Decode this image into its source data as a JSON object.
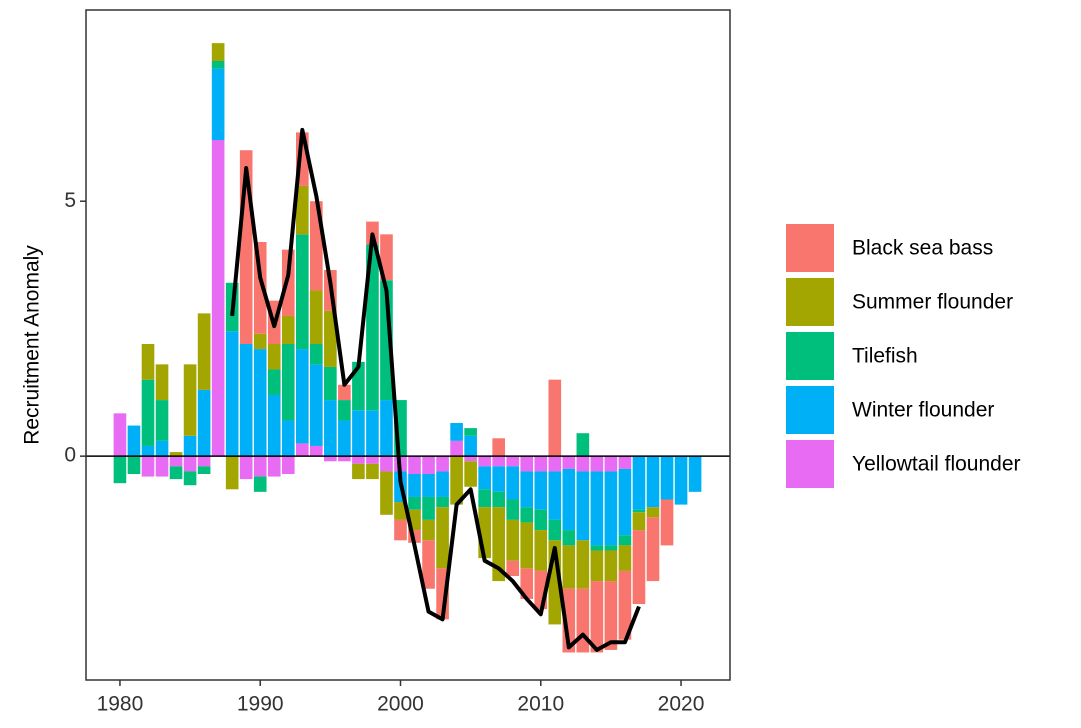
{
  "chart_data": {
    "type": "bar",
    "stacked": true,
    "y_label": "Recruitment Anomaly",
    "x": [
      1980,
      1981,
      1982,
      1983,
      1984,
      1985,
      1986,
      1987,
      1988,
      1989,
      1990,
      1991,
      1992,
      1993,
      1994,
      1995,
      1996,
      1997,
      1998,
      1999,
      2000,
      2001,
      2002,
      2003,
      2004,
      2005,
      2006,
      2007,
      2008,
      2009,
      2010,
      2011,
      2012,
      2013,
      2014,
      2015,
      2016,
      2017,
      2018,
      2019,
      2020,
      2021
    ],
    "xlim": [
      1977.58,
      2023.49
    ],
    "xticks": [
      1980,
      1990,
      2000,
      2010,
      2020
    ],
    "ylim": [
      -4.39,
      8.75
    ],
    "yticks": [
      0,
      5
    ],
    "grid": false,
    "legend": "right",
    "series": [
      {
        "name": "Black sea bass",
        "color": "#F8766D",
        "values": [
          null,
          null,
          null,
          null,
          null,
          null,
          null,
          null,
          null,
          3.8,
          1.8,
          0.85,
          1.3,
          1.05,
          1.75,
          0.8,
          0.3,
          null,
          0.45,
          0.9,
          -0.4,
          -0.25,
          -0.95,
          -1.0,
          null,
          null,
          null,
          0.35,
          -0.3,
          -0.6,
          -0.75,
          1.5,
          -1.25,
          -1.25,
          -1.4,
          -1.35,
          -1.35,
          -1.45,
          -1.25,
          -0.9,
          null,
          null
        ]
      },
      {
        "name": "Summer flounder",
        "color": "#A3A500",
        "values": [
          null,
          null,
          0.7,
          0.7,
          0.08,
          1.4,
          1.5,
          0.35,
          -0.65,
          null,
          0.3,
          0.5,
          0.55,
          0.95,
          1.05,
          1.1,
          null,
          -0.3,
          -0.3,
          -0.85,
          -0.35,
          -0.4,
          -0.4,
          -1.2,
          -0.95,
          -0.5,
          -1.0,
          -1.45,
          -0.8,
          -0.9,
          -0.8,
          -1.65,
          -0.85,
          -0.95,
          -0.6,
          -0.6,
          -0.5,
          -0.35,
          -0.2,
          null,
          null,
          null
        ]
      },
      {
        "name": "Tilefish",
        "color": "#00BF7D",
        "values": [
          -0.53,
          -0.35,
          1.3,
          0.8,
          -0.25,
          -0.27,
          -0.15,
          0.15,
          0.95,
          null,
          -0.3,
          0.5,
          1.5,
          2.25,
          0.4,
          0.65,
          0.4,
          0.95,
          3.25,
          2.35,
          1.1,
          -0.25,
          -0.45,
          -0.2,
          null,
          0.15,
          -0.35,
          -0.3,
          -0.4,
          -0.3,
          -0.4,
          -0.4,
          -0.3,
          0.45,
          -0.1,
          -0.1,
          -0.2,
          -0.05,
          null,
          null,
          null,
          null
        ]
      },
      {
        "name": "Winter flounder",
        "color": "#00B0F6",
        "values": [
          null,
          0.6,
          0.2,
          0.3,
          null,
          0.4,
          1.3,
          1.4,
          2.45,
          2.2,
          2.1,
          1.2,
          0.7,
          1.85,
          1.6,
          1.1,
          0.7,
          0.9,
          0.9,
          1.1,
          -0.6,
          -0.45,
          -0.45,
          -0.5,
          0.35,
          0.4,
          -0.45,
          -0.5,
          -0.65,
          -0.7,
          -0.75,
          -0.95,
          -1.2,
          -1.35,
          -1.45,
          -1.45,
          -1.3,
          -1.05,
          -1.0,
          -0.85,
          -0.95,
          -0.7
        ]
      },
      {
        "name": "Yellowtail flounder",
        "color": "#E76BF3",
        "values": [
          0.84,
          null,
          -0.4,
          -0.4,
          -0.2,
          -0.3,
          -0.2,
          6.2,
          null,
          -0.45,
          -0.4,
          -0.4,
          -0.35,
          0.25,
          0.2,
          -0.1,
          -0.1,
          -0.15,
          -0.15,
          -0.3,
          -0.3,
          -0.35,
          -0.35,
          -0.3,
          0.3,
          -0.1,
          -0.2,
          -0.2,
          -0.2,
          -0.3,
          -0.3,
          -0.3,
          -0.25,
          -0.3,
          -0.3,
          -0.3,
          -0.25,
          null,
          null,
          null,
          null,
          null
        ]
      }
    ],
    "line": {
      "color": "#000000",
      "x": [
        1988,
        1989,
        1990,
        1991,
        1992,
        1993,
        1994,
        1995,
        1996,
        1997,
        1998,
        1999,
        2000,
        2001,
        2002,
        2003,
        2004,
        2005,
        2006,
        2007,
        2008,
        2009,
        2010,
        2011,
        2012,
        2013,
        2014,
        2015,
        2016,
        2017
      ],
      "values": [
        2.75,
        5.65,
        3.5,
        2.55,
        3.55,
        6.4,
        5.1,
        3.4,
        1.4,
        1.75,
        4.35,
        3.25,
        -0.5,
        -1.75,
        -3.05,
        -3.2,
        -0.95,
        -0.65,
        -2.05,
        -2.2,
        -2.45,
        -2.8,
        -3.1,
        -1.8,
        -3.75,
        -3.5,
        -3.8,
        -3.65,
        -3.65,
        -2.95
      ]
    }
  }
}
